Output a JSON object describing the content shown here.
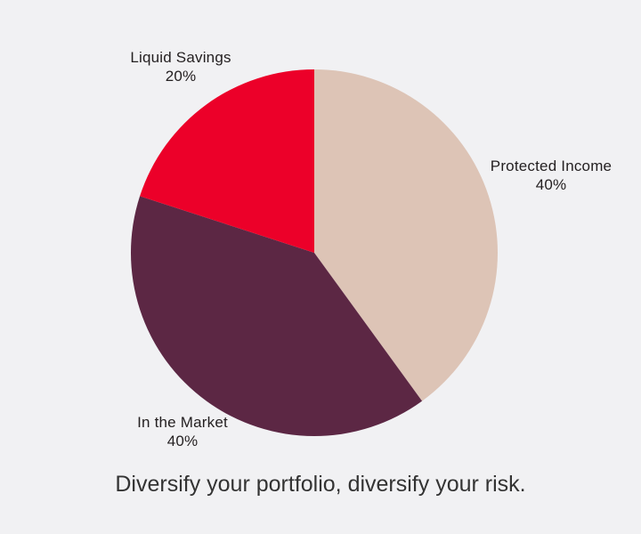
{
  "background_color": "#f1f1f3",
  "text_color": "#231f20",
  "caption_color": "#333333",
  "caption": "Diversify your portfolio, diversify your risk.",
  "chart_data": {
    "type": "pie",
    "title": "",
    "caption": "Diversify your portfolio, diversify your risk.",
    "start_angle_deg": 0,
    "direction": "clockwise",
    "legend": "none",
    "labels_position": "outside",
    "slices": [
      {
        "label": "Protected Income",
        "value": 40,
        "pct_label": "40%",
        "color": "#ddc4b6"
      },
      {
        "label": "In the Market",
        "value": 40,
        "pct_label": "40%",
        "color": "#5c2744"
      },
      {
        "label": "Liquid Savings",
        "value": 20,
        "pct_label": "20%",
        "color": "#ec0029"
      }
    ]
  }
}
